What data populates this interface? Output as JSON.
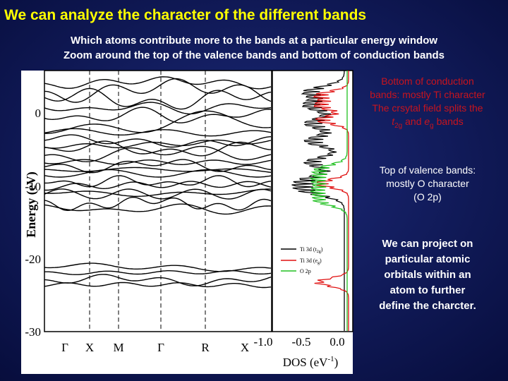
{
  "header": {
    "title": "We can analyze the character of the different bands",
    "subtitle": [
      "Which atoms contribute more to the bands at a particular energy window",
      "Zoom around the top of the valence bands and bottom of conduction bands"
    ]
  },
  "figure": {
    "y_axis_label": "Energy (eV)",
    "y_ticks": [
      "0",
      "-10",
      "-20",
      "-30"
    ],
    "k_points": [
      "Γ",
      "X",
      "M",
      "Γ",
      "R",
      "X"
    ],
    "dos_ticks": [
      "-1.0",
      "-0.5",
      "0.0"
    ],
    "dos_label": "DOS (eV",
    "dos_label_sup": "-1",
    "dos_label_end": ")",
    "legend": [
      {
        "label": "Ti 3d (t",
        "sub": "2g",
        "end": ")"
      },
      {
        "label": "Ti 3d (e",
        "sub": "g",
        "end": ")"
      },
      {
        "label": "O 2p",
        "sub": "",
        "end": ""
      }
    ]
  },
  "right_panel": {
    "conduction": [
      "Bottom of conduction",
      "bands: mostly Ti character",
      "The crsytal field splits the"
    ],
    "conduction_last": [
      "t",
      "2g",
      " and ",
      "e",
      "g",
      " bands"
    ],
    "valence": [
      "Top of valence bands:",
      "mostly O character",
      "(O 2p)"
    ],
    "projection": [
      "We can project on",
      "particular atomic",
      "orbitals within an",
      "atom to further",
      "define the charcter."
    ]
  }
}
